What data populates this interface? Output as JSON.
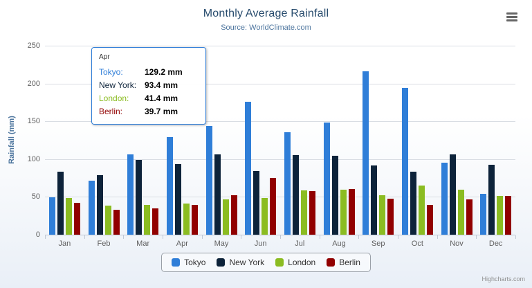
{
  "header": {
    "title": "Monthly Average Rainfall",
    "subtitle": "Source: WorldClimate.com"
  },
  "chart_data": {
    "type": "bar",
    "title": "Monthly Average Rainfall",
    "subtitle": "Source: WorldClimate.com",
    "categories": [
      "Jan",
      "Feb",
      "Mar",
      "Apr",
      "May",
      "Jun",
      "Jul",
      "Aug",
      "Sep",
      "Oct",
      "Nov",
      "Dec"
    ],
    "series": [
      {
        "name": "Tokyo",
        "color": "#2f7ed8",
        "values": [
          49.9,
          71.5,
          106.4,
          129.2,
          144.0,
          176.0,
          135.6,
          148.5,
          216.4,
          194.1,
          95.6,
          54.4
        ]
      },
      {
        "name": "New York",
        "color": "#0d233a",
        "values": [
          83.6,
          78.8,
          98.5,
          93.4,
          106.0,
          84.5,
          105.0,
          104.3,
          91.2,
          83.5,
          106.6,
          92.3
        ]
      },
      {
        "name": "London",
        "color": "#8bbc21",
        "values": [
          48.9,
          38.8,
          39.3,
          41.4,
          47.0,
          48.3,
          59.0,
          59.6,
          52.4,
          65.2,
          59.3,
          51.2
        ]
      },
      {
        "name": "Berlin",
        "color": "#910000",
        "values": [
          42.4,
          33.2,
          34.5,
          39.7,
          52.6,
          75.5,
          57.4,
          60.4,
          47.6,
          39.1,
          46.8,
          51.1
        ]
      }
    ],
    "xlabel": "",
    "ylabel": "Rainfall (mm)",
    "ylim": [
      0,
      250
    ],
    "yticks": [
      0,
      50,
      100,
      150,
      200,
      250
    ],
    "grid": true,
    "legend_position": "bottom"
  },
  "tooltip": {
    "header": "Apr",
    "border_color": "#2f7ed8",
    "rows": [
      {
        "label": "Tokyo:",
        "value": "129.2 mm",
        "color": "#2f7ed8"
      },
      {
        "label": "New York:",
        "value": "93.4 mm",
        "color": "#0d233a"
      },
      {
        "label": "London:",
        "value": "41.4 mm",
        "color": "#8bbc21"
      },
      {
        "label": "Berlin:",
        "value": "39.7 mm",
        "color": "#910000"
      }
    ]
  },
  "icons": {
    "export_menu": "hamburger-menu-icon"
  },
  "credits": "Highcharts.com"
}
